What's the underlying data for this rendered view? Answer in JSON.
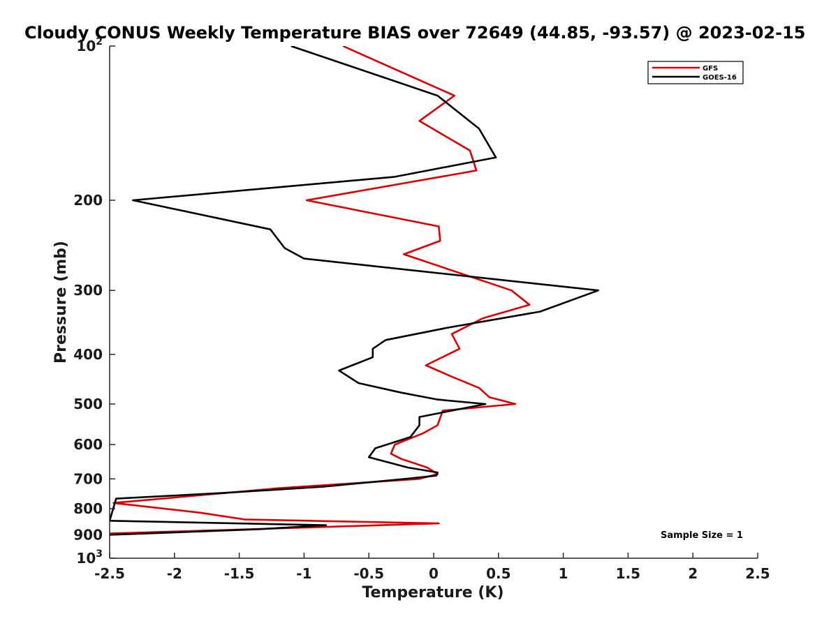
{
  "chart_data": {
    "type": "line",
    "title": "Cloudy CONUS Weekly Temperature BIAS over 72649 (44.85, -93.57) @ 2023-02-15",
    "xlabel": "Temperature (K)",
    "ylabel": "Pressure (mb)",
    "xlim": [
      -2.5,
      2.5
    ],
    "ylim": [
      100,
      1000
    ],
    "y_scale": "log",
    "y_reversed": true,
    "grid": false,
    "legend_position": "top-right",
    "x_ticks": [
      "-2.5",
      "-2",
      "-1.5",
      "-1",
      "-0.5",
      "0",
      "0.5",
      "1",
      "1.5",
      "2",
      "2.5"
    ],
    "y_ticks": [
      {
        "value": 100,
        "base": "10",
        "exp": "2"
      },
      {
        "value": 200,
        "label": "200"
      },
      {
        "value": 300,
        "label": "300"
      },
      {
        "value": 400,
        "label": "400"
      },
      {
        "value": 500,
        "label": "500"
      },
      {
        "value": 600,
        "label": "600"
      },
      {
        "value": 700,
        "label": "700"
      },
      {
        "value": 800,
        "label": "800"
      },
      {
        "value": 900,
        "label": "900"
      },
      {
        "value": 1000,
        "base": "10",
        "exp": "3"
      }
    ],
    "series": [
      {
        "name": "GFS",
        "color": "#e00000",
        "points": [
          [
            -0.7,
            100
          ],
          [
            0.16,
            125
          ],
          [
            -0.11,
            140
          ],
          [
            0.28,
            160
          ],
          [
            0.33,
            175
          ],
          [
            -0.98,
            200
          ],
          [
            0.04,
            225
          ],
          [
            0.05,
            240
          ],
          [
            -0.23,
            255
          ],
          [
            0.6,
            300
          ],
          [
            0.74,
            320
          ],
          [
            0.38,
            340
          ],
          [
            0.14,
            365
          ],
          [
            0.2,
            390
          ],
          [
            -0.06,
            420
          ],
          [
            0.12,
            440
          ],
          [
            0.35,
            465
          ],
          [
            0.43,
            485
          ],
          [
            0.63,
            500
          ],
          [
            0.07,
            515
          ],
          [
            0.03,
            550
          ],
          [
            -0.08,
            570
          ],
          [
            -0.3,
            600
          ],
          [
            -0.33,
            625
          ],
          [
            -0.25,
            640
          ],
          [
            -0.05,
            665
          ],
          [
            0.03,
            685
          ],
          [
            -0.11,
            700
          ],
          [
            -1.2,
            730
          ],
          [
            -2.47,
            780
          ],
          [
            -1.8,
            815
          ],
          [
            -1.46,
            840
          ],
          [
            0.04,
            855
          ],
          [
            -2.5,
            895
          ]
        ]
      },
      {
        "name": "GOES-16",
        "color": "#000000",
        "points": [
          [
            -1.1,
            100
          ],
          [
            0.03,
            125
          ],
          [
            0.35,
            145
          ],
          [
            0.48,
            165
          ],
          [
            -0.3,
            180
          ],
          [
            -2.32,
            200
          ],
          [
            -1.26,
            228
          ],
          [
            -1.15,
            248
          ],
          [
            -1.0,
            260
          ],
          [
            1.27,
            300
          ],
          [
            0.82,
            330
          ],
          [
            0.1,
            355
          ],
          [
            -0.37,
            375
          ],
          [
            -0.47,
            390
          ],
          [
            -0.47,
            405
          ],
          [
            -0.73,
            430
          ],
          [
            -0.58,
            455
          ],
          [
            -0.25,
            475
          ],
          [
            0.03,
            490
          ],
          [
            0.4,
            500
          ],
          [
            -0.11,
            530
          ],
          [
            -0.11,
            550
          ],
          [
            -0.18,
            580
          ],
          [
            -0.45,
            610
          ],
          [
            -0.5,
            635
          ],
          [
            -0.2,
            665
          ],
          [
            0.03,
            680
          ],
          [
            0.02,
            690
          ],
          [
            -0.22,
            700
          ],
          [
            -0.85,
            725
          ],
          [
            -1.6,
            745
          ],
          [
            -2.45,
            765
          ],
          [
            -2.5,
            845
          ],
          [
            -0.83,
            862
          ],
          [
            -1.35,
            878
          ],
          [
            -2.5,
            900
          ]
        ]
      }
    ],
    "annotation": "Sample Size = 1"
  }
}
